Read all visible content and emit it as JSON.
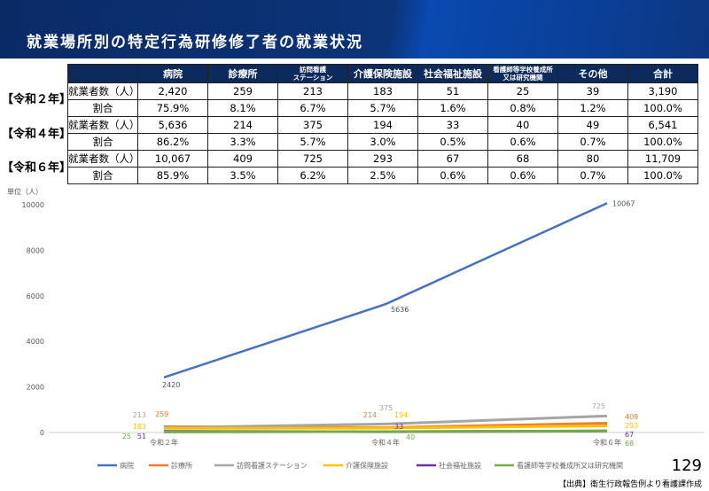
{
  "title": "就業場所別の特定行為研修修了者の就業状況",
  "table": {
    "headers": [
      "",
      "病院",
      "診療所",
      "訪問看護ステーション",
      "介護保険施設",
      "社会福祉施設",
      "看護師等学校養成所又は研究機関",
      "その他",
      "合計"
    ],
    "header_lines": {
      "h3a": "訪問看護",
      "h3b": "ステーション",
      "h7a": "看護師等学校養成所",
      "h7b": "又は研究機関"
    },
    "groups": [
      {
        "year": "【令和２年】",
        "rows": [
          [
            "就業者数（人）",
            "2,420",
            "259",
            "213",
            "183",
            "51",
            "25",
            "39",
            "3,190"
          ],
          [
            "割合",
            "75.9%",
            "8.1%",
            "6.7%",
            "5.7%",
            "1.6%",
            "0.8%",
            "1.2%",
            "100.0%"
          ]
        ]
      },
      {
        "year": "【令和４年】",
        "rows": [
          [
            "就業者数（人）",
            "5,636",
            "214",
            "375",
            "194",
            "33",
            "40",
            "49",
            "6,541"
          ],
          [
            "割合",
            "86.2%",
            "3.3%",
            "5.7%",
            "3.0%",
            "0.5%",
            "0.6%",
            "0.7%",
            "100.0%"
          ]
        ]
      },
      {
        "year": "【令和６年】",
        "rows": [
          [
            "就業者数（人）",
            "10,067",
            "409",
            "725",
            "293",
            "67",
            "68",
            "80",
            "11,709"
          ],
          [
            "割合",
            "85.9%",
            "3.5%",
            "6.2%",
            "2.5%",
            "0.6%",
            "0.6%",
            "0.7%",
            "100.0%"
          ]
        ]
      }
    ]
  },
  "chart_data": {
    "type": "line",
    "ylabel": "単位（人）",
    "x": [
      "令和２年",
      "令和４年",
      "令和６年"
    ],
    "ylim": [
      0,
      10000
    ],
    "yticks": [
      0,
      2000,
      4000,
      6000,
      8000,
      10000
    ],
    "legend_position": "bottom",
    "series": [
      {
        "name": "病院",
        "color": "#4472c4",
        "values": [
          2420,
          5636,
          10067
        ]
      },
      {
        "name": "診療所",
        "color": "#ed7d31",
        "values": [
          259,
          214,
          409
        ]
      },
      {
        "name": "訪問看護ステーション",
        "color": "#a5a5a5",
        "values": [
          213,
          375,
          725
        ]
      },
      {
        "name": "介護保険施設",
        "color": "#ffc000",
        "values": [
          183,
          194,
          293
        ]
      },
      {
        "name": "社会福祉施設",
        "color": "#7030a0",
        "values": [
          51,
          33,
          67
        ]
      },
      {
        "name": "看護師等学校養成所又は研究機関",
        "color": "#70ad47",
        "values": [
          25,
          40,
          68
        ]
      }
    ]
  },
  "page_number": "129",
  "source": "【出典】衛生行政報告例より看護課作成"
}
